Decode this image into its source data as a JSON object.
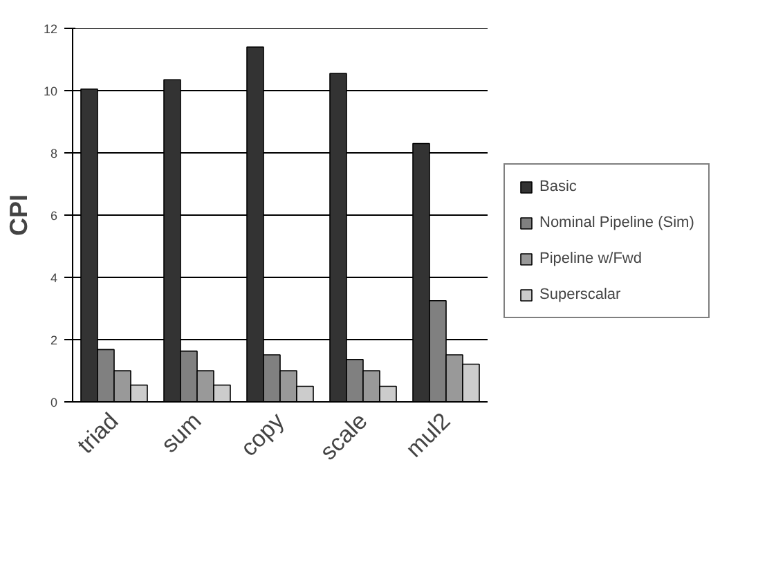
{
  "chart_data": {
    "type": "bar",
    "ylabel": "CPI",
    "categories": [
      "triad",
      "sum",
      "copy",
      "scale",
      "mul2"
    ],
    "series": [
      {
        "name": "Basic",
        "color": "#333333",
        "values": [
          10.05,
          10.35,
          11.4,
          10.55,
          8.3
        ]
      },
      {
        "name": "Nominal Pipeline (Sim)",
        "color": "#808080",
        "values": [
          1.68,
          1.63,
          1.51,
          1.36,
          3.25
        ]
      },
      {
        "name": "Pipeline w/Fwd",
        "color": "#999999",
        "values": [
          1.0,
          1.0,
          1.0,
          1.0,
          1.51
        ]
      },
      {
        "name": "Superscalar",
        "color": "#cccccc",
        "values": [
          0.54,
          0.54,
          0.5,
          0.5,
          1.21
        ]
      }
    ],
    "ylim": [
      0,
      12
    ],
    "yticks": [
      0,
      2,
      4,
      6,
      8,
      10,
      12
    ],
    "grid": "y",
    "legend": "right"
  }
}
